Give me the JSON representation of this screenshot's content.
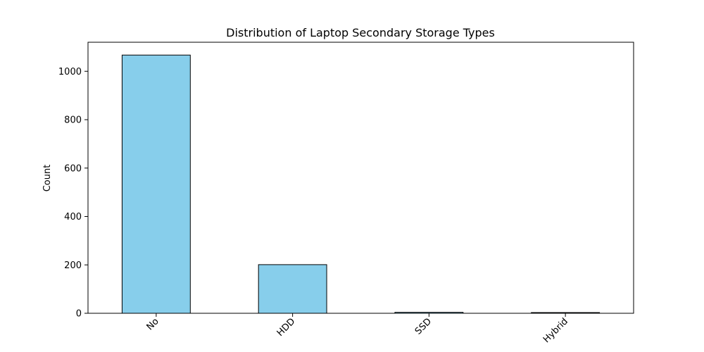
{
  "chart_data": {
    "type": "bar",
    "title": "Distribution of Laptop Secondary Storage Types",
    "xlabel": "",
    "ylabel": "Count",
    "categories": [
      "No",
      "HDD",
      "SSD",
      "Hybrid"
    ],
    "values": [
      1067,
      201,
      4,
      3
    ],
    "ylim": [
      0,
      1120
    ],
    "yticks": [
      0,
      200,
      400,
      600,
      800,
      1000
    ],
    "grid": false,
    "legend": "none",
    "colors": {
      "bar_fill": "#87ceeb",
      "bar_edge": "#000000"
    }
  }
}
